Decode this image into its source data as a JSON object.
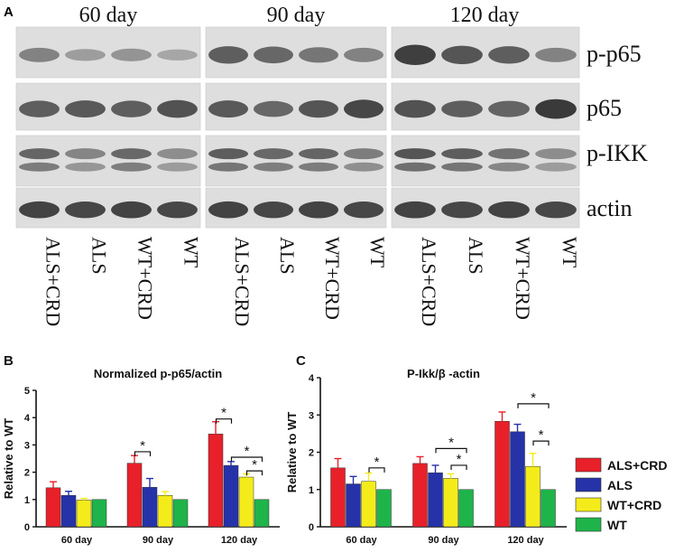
{
  "panel_a": {
    "letter": "A",
    "timepoints": [
      "60 day",
      "90 day",
      "120 day"
    ],
    "proteins": [
      "p-p65",
      "p65",
      "p-IKK",
      "actin"
    ],
    "lanes": [
      "ALS+CRD",
      "ALS",
      "WT+CRD",
      "WT"
    ]
  },
  "legend": {
    "entries": [
      {
        "label": "ALS+CRD",
        "color": "#e8202a"
      },
      {
        "label": "ALS",
        "color": "#2632a8"
      },
      {
        "label": "WT+CRD",
        "color": "#f4ec1a"
      },
      {
        "label": "WT",
        "color": "#1eb44a"
      }
    ]
  },
  "chart_data": [
    {
      "panel": "B",
      "type": "bar",
      "title": "Normalized p-p65/actin",
      "ylabel": "Relative to WT",
      "xlabel": "",
      "ylim": [
        0,
        5
      ],
      "yticks": [
        "0",
        "1",
        "2",
        "3",
        "4",
        "5"
      ],
      "categories": [
        "60 day",
        "90 day",
        "120 day"
      ],
      "series": [
        {
          "name": "ALS+CRD",
          "values": [
            1.43,
            2.33,
            3.4
          ],
          "errors": [
            0.22,
            0.28,
            0.45
          ]
        },
        {
          "name": "ALS",
          "values": [
            1.15,
            1.45,
            2.25
          ],
          "errors": [
            0.15,
            0.32,
            0.14
          ]
        },
        {
          "name": "WT+CRD",
          "values": [
            0.98,
            1.15,
            1.82
          ],
          "errors": [
            0.06,
            0.14,
            0.12
          ]
        },
        {
          "name": "WT",
          "values": [
            1.0,
            1.0,
            1.0
          ],
          "errors": [
            0,
            0,
            0
          ]
        }
      ],
      "significance": [
        {
          "group": 1,
          "from": 0,
          "to": 1,
          "y": 2.75,
          "label": "*"
        },
        {
          "group": 2,
          "from": 0,
          "to": 1,
          "y": 3.95,
          "label": "*"
        },
        {
          "group": 2,
          "from": 1,
          "to": 3,
          "y": 2.55,
          "label": "*"
        },
        {
          "group": 2,
          "from": 2,
          "to": 3,
          "y": 2.05,
          "label": "*"
        }
      ]
    },
    {
      "panel": "C",
      "type": "bar",
      "title": "P-Ikk/β -actin",
      "ylabel": "Relative to WT",
      "xlabel": "",
      "ylim": [
        0,
        4
      ],
      "yticks": [
        "0",
        "1",
        "2",
        "3",
        "4"
      ],
      "categories": [
        "60 day",
        "90 day",
        "120 day"
      ],
      "series": [
        {
          "name": "ALS+CRD",
          "values": [
            1.58,
            1.7,
            2.83
          ],
          "errors": [
            0.25,
            0.18,
            0.25
          ]
        },
        {
          "name": "ALS",
          "values": [
            1.15,
            1.45,
            2.55
          ],
          "errors": [
            0.2,
            0.2,
            0.2
          ]
        },
        {
          "name": "WT+CRD",
          "values": [
            1.22,
            1.3,
            1.62
          ],
          "errors": [
            0.22,
            0.12,
            0.35
          ]
        },
        {
          "name": "WT",
          "values": [
            1.0,
            1.0,
            1.0
          ],
          "errors": [
            0,
            0,
            0
          ]
        }
      ],
      "significance": [
        {
          "group": 0,
          "from": 2,
          "to": 3,
          "y": 1.58,
          "label": "*"
        },
        {
          "group": 1,
          "from": 1,
          "to": 3,
          "y": 2.1,
          "label": "*"
        },
        {
          "group": 1,
          "from": 2,
          "to": 3,
          "y": 1.65,
          "label": "*"
        },
        {
          "group": 2,
          "from": 1,
          "to": 3,
          "y": 3.3,
          "label": "*"
        },
        {
          "group": 2,
          "from": 2,
          "to": 3,
          "y": 2.3,
          "label": "*"
        }
      ]
    }
  ]
}
